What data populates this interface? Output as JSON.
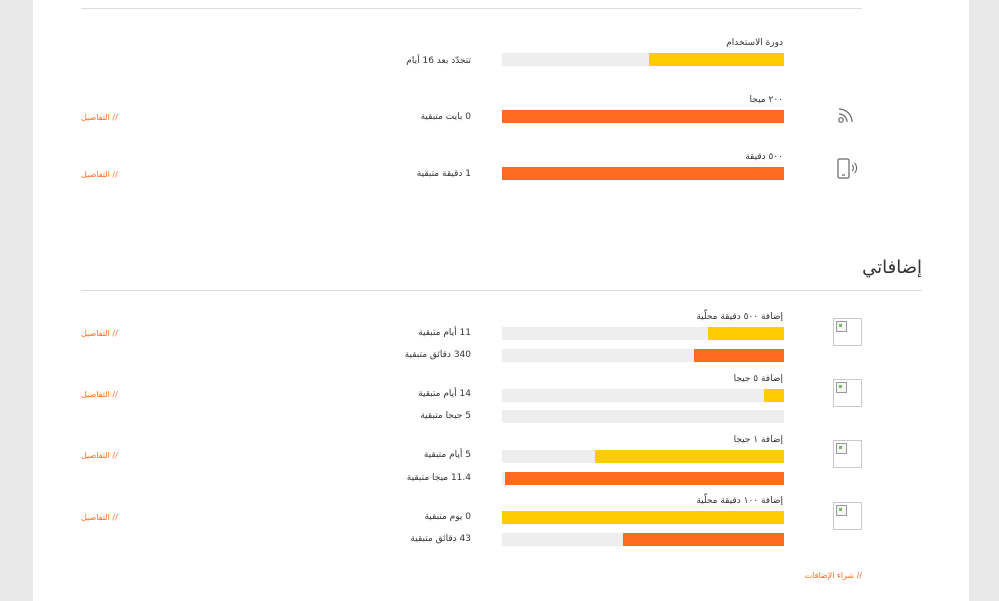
{
  "usage": {
    "cycle": {
      "label": "دورة الاستخدام",
      "value": "تتجدّد بعد 16 أيام",
      "fill": 0.48,
      "color": "#ffcc00"
    },
    "data": {
      "label": "٢٠٠ ميجا",
      "value": "0 بايت متبقية",
      "fill": 1.0,
      "color": "#ff6b21",
      "details": "// التفاصيل",
      "icon": "wifi-signal-icon"
    },
    "minutes": {
      "label": "٥٠٠ دقيقة",
      "value": "1 دقيقة متبقية",
      "fill": 1.0,
      "color": "#ff6b21",
      "details": "// التفاصيل",
      "icon": "mobile-phone-icon"
    }
  },
  "addons": {
    "title": "إضافاتي",
    "items": [
      {
        "title": "إضافة ٥٠٠ دقيقة محلّية",
        "details": "// التفاصيل",
        "bars": [
          {
            "value": "11 أيام متبقية",
            "fill": 0.27,
            "color": "#ffcc00"
          },
          {
            "value": "340 دقائق متبقية",
            "fill": 0.32,
            "color": "#ff6b21"
          }
        ]
      },
      {
        "title": "إضافة ٥ جيجا",
        "details": "// التفاصيل",
        "bars": [
          {
            "value": "14 أيام متبقية",
            "fill": 0.07,
            "color": "#ffcc00"
          },
          {
            "value": "5 جيجا متبقية",
            "fill": 0.0,
            "color": "#ff6b21"
          }
        ]
      },
      {
        "title": "إضافة ١ جيجا",
        "details": "// التفاصيل",
        "bars": [
          {
            "value": "5 أيام متبقية",
            "fill": 0.67,
            "color": "#ffcc00"
          },
          {
            "value": "11.4 ميجا متبقية",
            "fill": 0.99,
            "color": "#ff6b21"
          }
        ]
      },
      {
        "title": "إضافة ١٠٠ دقيقة محلّية",
        "details": "// التفاصيل",
        "bars": [
          {
            "value": "0 يوم متبقية",
            "fill": 1.0,
            "color": "#ffcc00"
          },
          {
            "value": "43 دقائق متبقية",
            "fill": 0.57,
            "color": "#ff6b21"
          }
        ]
      }
    ],
    "buy_link": "// شراء الإضافات"
  }
}
